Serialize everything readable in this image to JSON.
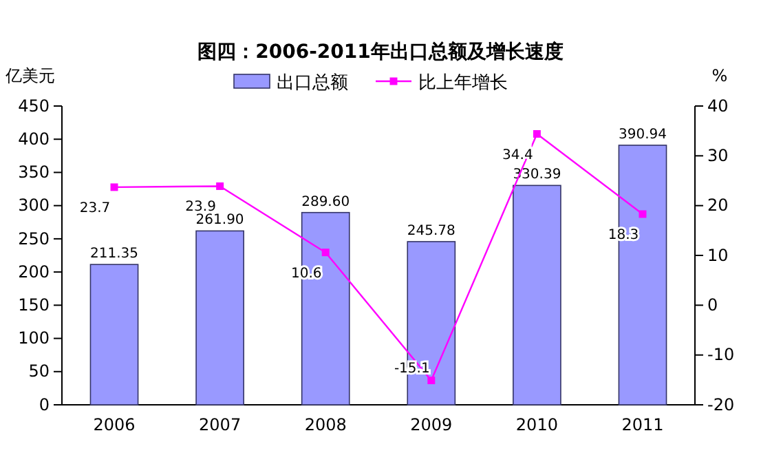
{
  "chart_data": {
    "type": "bar",
    "title": "图四：2006-2011年出口总额及增长速度",
    "ylabel": "亿美元",
    "y2label": "%",
    "categories": [
      "2006",
      "2007",
      "2008",
      "2009",
      "2010",
      "2011"
    ],
    "series": [
      {
        "name": "出口总额",
        "color": "#9999ff",
        "values": [
          211.35,
          261.9,
          289.6,
          245.78,
          330.39,
          390.94
        ],
        "value_labels": [
          "211.35",
          "261.90",
          "289.60",
          "245.78",
          "330.39",
          "390.94"
        ]
      },
      {
        "name": "比上年增长",
        "type": "line",
        "axis": "y2",
        "color": "#ff00ff",
        "values": [
          23.7,
          23.9,
          10.6,
          -15.1,
          34.4,
          18.3
        ],
        "value_labels": [
          "23.7",
          "23.9",
          "10.6",
          "-15.1",
          "34.4",
          "18.3"
        ]
      }
    ],
    "ylim": [
      0,
      450
    ],
    "yticks": [
      0,
      50,
      100,
      150,
      200,
      250,
      300,
      350,
      400,
      450
    ],
    "y2lim": [
      -20,
      40
    ],
    "y2ticks": [
      -20,
      -10,
      0,
      10,
      20,
      30,
      40
    ],
    "legend": "top",
    "marker": "square",
    "line_style": "solid",
    "grid": false
  }
}
